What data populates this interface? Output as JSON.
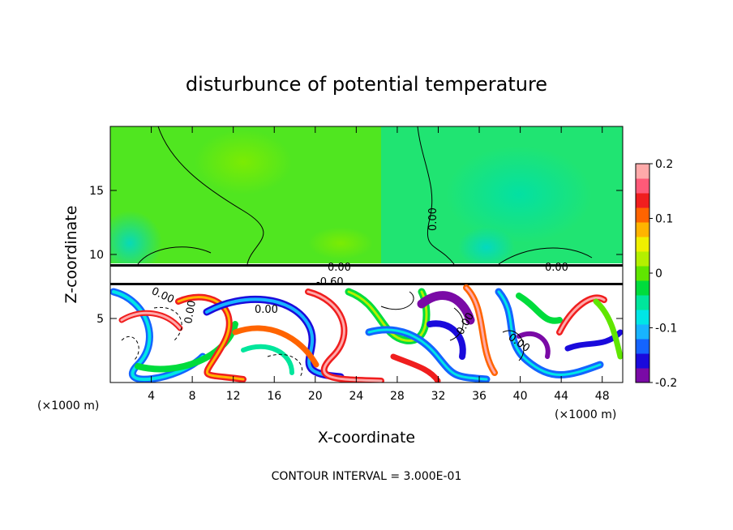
{
  "chart_data": {
    "type": "heatmap",
    "title": "disturbunce of potential temperature",
    "xlabel": "X-coordinate",
    "ylabel": "Z-coordinate",
    "x_unit": "(×1000 m)",
    "y_unit": "(×1000 m)",
    "xlim": [
      0,
      50
    ],
    "ylim": [
      0,
      20
    ],
    "x_ticks": [
      4,
      8,
      12,
      16,
      20,
      24,
      28,
      32,
      36,
      40,
      44,
      48
    ],
    "y_ticks": [
      5,
      10,
      15
    ],
    "colorbar": {
      "min": -0.2,
      "max": 0.2,
      "ticks": [
        "0.2",
        "0.1",
        "0",
        "-0.1",
        "-0.2"
      ],
      "colors": [
        "#7a0aa6",
        "#1a0adc",
        "#1464ff",
        "#18b4ff",
        "#00e6e6",
        "#00e69c",
        "#00dc3c",
        "#60e600",
        "#b4f000",
        "#f0f000",
        "#ffb400",
        "#ff6400",
        "#f01e1e",
        "#ff5a78",
        "#ffaaaa"
      ]
    },
    "contour_labels": [
      "0.00",
      "0.00",
      "0.00",
      "0.00",
      "0.00",
      "0.00",
      "0.00",
      "0.00",
      "-0.60"
    ],
    "note": "CONTOUR INTERVAL = 3.000E-01",
    "regions": {
      "upper_background": "green",
      "lower_layer_top": 7.7
    }
  }
}
